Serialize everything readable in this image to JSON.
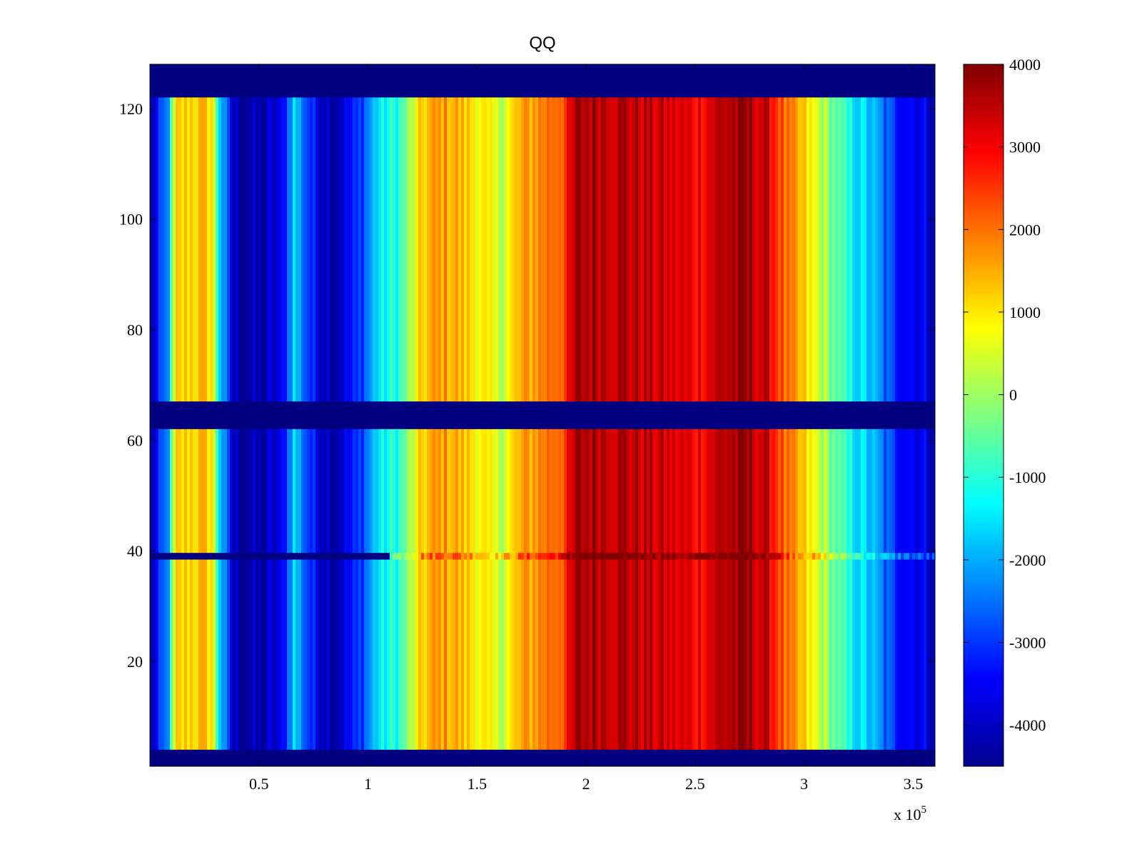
{
  "chart_data": {
    "type": "heatmap",
    "title": "QQ",
    "xlabel": "",
    "ylabel": "",
    "x_multiplier_label": {
      "base": "x 10",
      "exponent": "5"
    },
    "xlim": [
      0.0,
      3.6
    ],
    "ylim": [
      1,
      128
    ],
    "x_ticks": [
      {
        "value": 0.5,
        "label": "0.5"
      },
      {
        "value": 1,
        "label": "1"
      },
      {
        "value": 1.5,
        "label": "1.5"
      },
      {
        "value": 2,
        "label": "2"
      },
      {
        "value": 2.5,
        "label": "2.5"
      },
      {
        "value": 3,
        "label": "3"
      },
      {
        "value": 3.5,
        "label": "3.5"
      }
    ],
    "y_ticks": [
      {
        "value": 20,
        "label": "20"
      },
      {
        "value": 40,
        "label": "40"
      },
      {
        "value": 60,
        "label": "60"
      },
      {
        "value": 80,
        "label": "80"
      },
      {
        "value": 100,
        "label": "100"
      },
      {
        "value": 120,
        "label": "120"
      }
    ],
    "colorbar": {
      "colormap": "jet",
      "clim": [
        -4500,
        4000
      ],
      "ticks": [
        {
          "value": 4000,
          "label": "4000"
        },
        {
          "value": 3000,
          "label": "3000"
        },
        {
          "value": 2000,
          "label": "2000"
        },
        {
          "value": 1000,
          "label": "1000"
        },
        {
          "value": 0,
          "label": "0"
        },
        {
          "value": -1000,
          "label": "-1000"
        },
        {
          "value": -2000,
          "label": "-2000"
        },
        {
          "value": -3000,
          "label": "-3000"
        },
        {
          "value": -4000,
          "label": "-4000"
        }
      ]
    },
    "column_profile": {
      "x": [
        0.0,
        0.08,
        0.12,
        0.2,
        0.28,
        0.32,
        0.38,
        0.5,
        0.6,
        0.66,
        0.76,
        0.85,
        0.95,
        1.05,
        1.15,
        1.25,
        1.35,
        1.5,
        1.6,
        1.7,
        1.8,
        1.9,
        1.96,
        2.05,
        2.2,
        2.35,
        2.5,
        2.65,
        2.75,
        2.85,
        2.92,
        3.0,
        3.1,
        3.2,
        3.3,
        3.4,
        3.5,
        3.6
      ],
      "value": [
        -4300,
        -2400,
        1000,
        1300,
        1200,
        -1500,
        -4000,
        -4200,
        -3800,
        -1600,
        -3500,
        -4000,
        -3200,
        -1500,
        -900,
        1200,
        1700,
        1000,
        300,
        1400,
        1900,
        2400,
        3600,
        3700,
        3500,
        3300,
        3000,
        3600,
        3700,
        3100,
        1800,
        1100,
        0,
        -1200,
        -1800,
        -3000,
        -3400,
        -3800
      ]
    },
    "empty_row_bands": [
      [
        1,
        4
      ],
      [
        62,
        67
      ],
      [
        122,
        128
      ]
    ],
    "highlighted_row": {
      "y": 39,
      "note": ""
    }
  }
}
